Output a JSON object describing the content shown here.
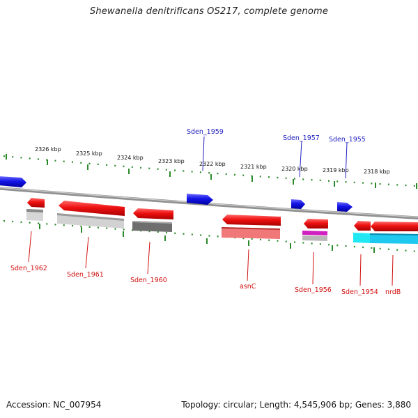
{
  "title": "Shewanella denitrificans OS217, complete genome",
  "accession_label": "Accession: NC_007954",
  "summary_label": "Topology: circular; Length: 4,545,906 bp; Genes: 3,880",
  "colors": {
    "forward_gene": "#2020e0",
    "reverse_gene": "#e81010",
    "forward_label": "#2020c0",
    "reverse_label": "#d01010",
    "tick": "#2a8a2a",
    "backbone": "#8a8a8a"
  },
  "scale_labels": [
    "2326 kbp",
    "2325 kbp",
    "2324 kbp",
    "2323 kbp",
    "2322 kbp",
    "2321 kbp",
    "2320 kbp",
    "2319 kbp",
    "2318 kbp"
  ],
  "forward_gene_labels": [
    "Sden_1959",
    "Sden_1957",
    "Sden_1955"
  ],
  "reverse_gene_labels": [
    "Sden_1962",
    "Sden_1961",
    "Sden_1960",
    "asnC",
    "Sden_1956",
    "Sden_1954",
    "nrdB"
  ]
}
